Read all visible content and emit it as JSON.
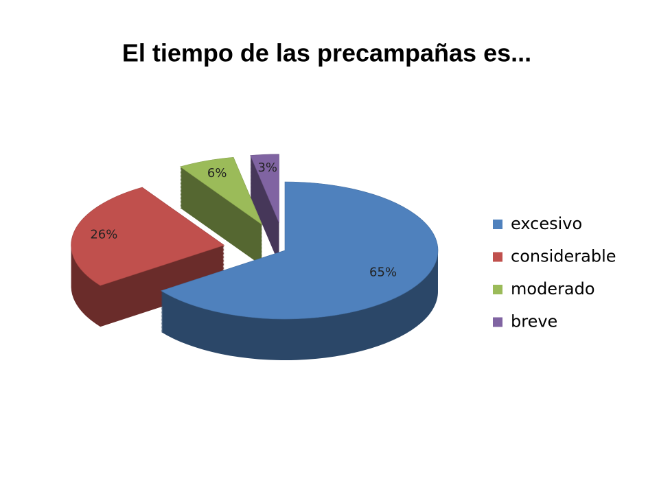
{
  "chart_data": {
    "type": "pie",
    "title": "El tiempo de las precampañas es...",
    "categories": [
      "excesivo",
      "considerable",
      "moderado",
      "breve"
    ],
    "values": [
      65,
      26,
      6,
      3
    ],
    "value_labels": [
      "65%",
      "26%",
      "6%",
      "3%"
    ],
    "colors": [
      "#4f81bd",
      "#c0504d",
      "#9bbb59",
      "#8064a2"
    ],
    "legend": "right"
  }
}
